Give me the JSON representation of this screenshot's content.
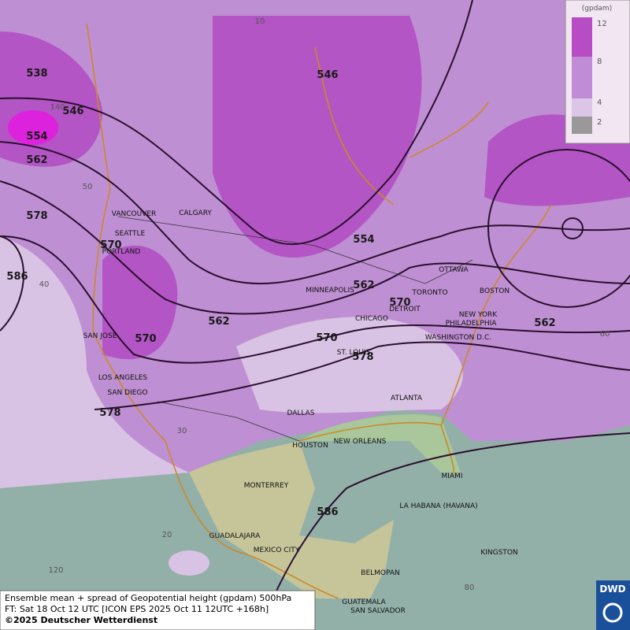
{
  "legend": {
    "unit": "(gpdam)",
    "ticks": [
      12,
      8,
      4,
      2
    ]
  },
  "contour_labels": [
    538,
    546,
    554,
    562,
    578,
    586,
    570,
    570,
    562,
    554,
    546,
    562,
    570,
    570,
    578,
    562,
    578,
    586
  ],
  "cities": [
    "VANCOUVER",
    "CALGARY",
    "SEATTLE",
    "PORTLAND",
    "MINNEAPOLIS",
    "OTTAWA",
    "TORONTO",
    "BOSTON",
    "DETROIT",
    "CHICAGO",
    "NEW YORK",
    "PHILADELPHIA",
    "WASHINGTON D.C.",
    "ST. LOUIS",
    "SAN JOSE",
    "LOS ANGELES",
    "SAN DIEGO",
    "ATLANTA",
    "DALLAS",
    "HOUSTON",
    "NEW ORLEANS",
    "MIAMI",
    "MONTERREY",
    "LA HABANA (HAVANA)",
    "GUADALAJARA",
    "MEXICO CITY",
    "KINGSTON",
    "BELMOPAN",
    "GUATEMALA",
    "SAN SALVADOR"
  ],
  "graticule_labels": [
    140,
    50,
    40,
    30,
    20,
    120,
    10,
    60,
    80
  ],
  "footer": {
    "lines": [
      "Ensemble mean + spread of Geopotential height (gpdam) 500hPa",
      "FT: Sat 18 Oct 12 UTC [ICON EPS 2025 Oct 11 12UTC +168h]",
      "©2025 Deutscher Wetterdienst"
    ]
  },
  "logo": "DWD"
}
